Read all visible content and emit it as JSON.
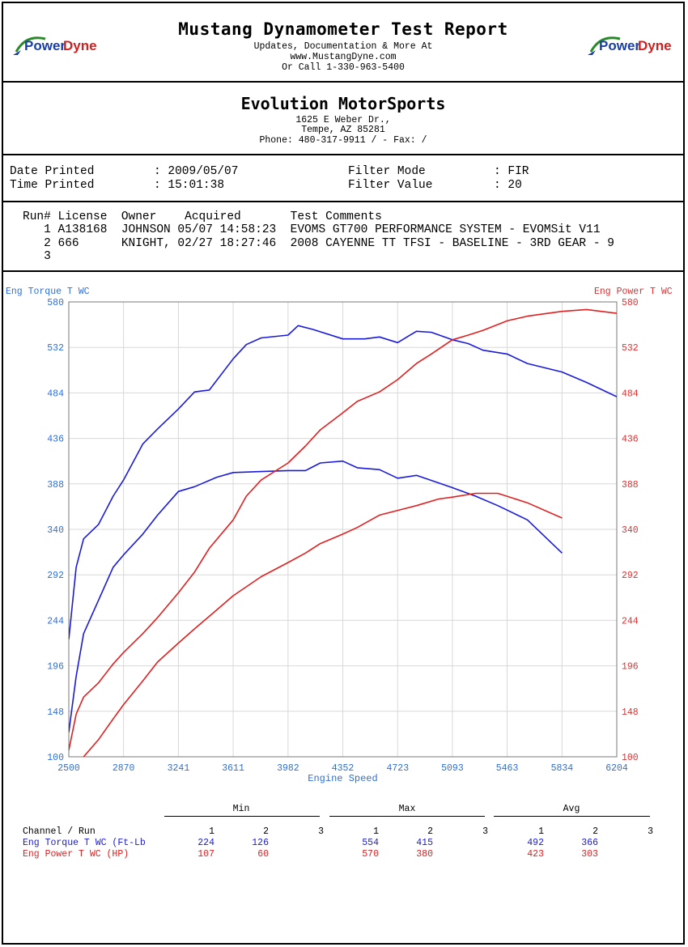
{
  "header": {
    "title": "Mustang Dynamometer Test Report",
    "line1": "Updates, Documentation & More At",
    "line2": "www.MustangDyne.com",
    "line3": "Or Call 1-330-963-5400",
    "logo_text": "PowerDyne",
    "logo_part1": "Power",
    "logo_part2": "Dyne"
  },
  "shop": {
    "name": "Evolution MotorSports",
    "address": "1625 E Weber Dr.,",
    "city": "Tempe, AZ  85281",
    "phone": "Phone: 480-317-9911 /  - Fax:  /"
  },
  "info": {
    "date_label": "Date Printed",
    "date_value": ": 2009/05/07",
    "time_label": "Time Printed",
    "time_value": ": 15:01:38",
    "filter_mode_label": "Filter Mode",
    "filter_mode_value": ": FIR",
    "filter_value_label": "Filter Value",
    "filter_value_value": ": 20"
  },
  "runs": {
    "header": "Run# License  Owner    Acquired       Test Comments",
    "rows": [
      "   1 A138168  JOHNSON 05/07 14:58:23  EVOMS GT700 PERFORMANCE SYSTEM - EVOMSit V11",
      "   2 666      KNIGHT, 02/27 18:27:46  2008 CAYENNE TT TFSI - BASELINE - 3RD GEAR - 9",
      "   3"
    ]
  },
  "chart_data": {
    "type": "line",
    "title": "",
    "xlabel": "Engine Speed",
    "ylabel_left": "Eng Torque T WC",
    "ylabel_right": "Eng Power T WC",
    "xlim": [
      2500,
      6204
    ],
    "ylim": [
      100,
      580
    ],
    "x_ticks": [
      "2500",
      "2870",
      "3241",
      "3611",
      "3982",
      "4352",
      "4723",
      "5093",
      "5463",
      "5834",
      "6204"
    ],
    "y_ticks": [
      "100",
      "148",
      "196",
      "244",
      "292",
      "340",
      "388",
      "436",
      "484",
      "532",
      "580"
    ],
    "grid": true,
    "colors": {
      "torque": "#1a1adc",
      "power": "#e02020",
      "left_axis": "#2f6fd8",
      "right_axis": "#e03030"
    },
    "series": [
      {
        "name": "Eng Torque T WC",
        "run": 1,
        "color": "#1a1adc",
        "x": [
          2500,
          2550,
          2600,
          2700,
          2800,
          2870,
          3000,
          3100,
          3241,
          3350,
          3450,
          3611,
          3700,
          3800,
          3982,
          4050,
          4150,
          4352,
          4500,
          4600,
          4723,
          4850,
          4950,
          5093,
          5200,
          5300,
          5463,
          5600,
          5834,
          6000,
          6204
        ],
        "y": [
          224,
          300,
          330,
          345,
          375,
          392,
          430,
          446,
          467,
          485,
          487,
          520,
          535,
          542,
          545,
          555,
          551,
          541,
          541,
          543,
          537,
          549,
          548,
          540,
          536,
          529,
          525,
          515,
          506,
          495,
          480
        ]
      },
      {
        "name": "Eng Torque T WC",
        "run": 2,
        "color": "#1a1adc",
        "x": [
          2500,
          2550,
          2600,
          2700,
          2800,
          2870,
          3000,
          3100,
          3241,
          3350,
          3500,
          3611,
          3800,
          3982,
          4100,
          4200,
          4352,
          4450,
          4600,
          4723,
          4850,
          5000,
          5093,
          5250,
          5400,
          5600,
          5834
        ],
        "y": [
          126,
          185,
          230,
          265,
          300,
          313,
          335,
          355,
          380,
          385,
          395,
          400,
          401,
          402,
          402,
          410,
          412,
          405,
          403,
          394,
          397,
          389,
          384,
          375,
          365,
          350,
          315
        ]
      },
      {
        "name": "Eng Power T WC",
        "run": 1,
        "color": "#e02020",
        "x": [
          2500,
          2550,
          2600,
          2700,
          2800,
          2870,
          3000,
          3100,
          3241,
          3350,
          3450,
          3611,
          3700,
          3800,
          3982,
          4100,
          4200,
          4352,
          4450,
          4600,
          4723,
          4850,
          4950,
          5093,
          5200,
          5300,
          5463,
          5600,
          5834,
          6000,
          6204
        ],
        "y": [
          107,
          145,
          163,
          178,
          198,
          210,
          230,
          247,
          273,
          295,
          320,
          350,
          375,
          392,
          410,
          428,
          445,
          463,
          475,
          485,
          498,
          515,
          525,
          540,
          545,
          550,
          560,
          565,
          570,
          572,
          568
        ]
      },
      {
        "name": "Eng Power T WC",
        "run": 2,
        "color": "#e02020",
        "x": [
          2500,
          2550,
          2600,
          2700,
          2800,
          2870,
          3000,
          3100,
          3241,
          3350,
          3500,
          3611,
          3800,
          3982,
          4100,
          4200,
          4352,
          4450,
          4600,
          4723,
          4850,
          5000,
          5093,
          5250,
          5400,
          5600,
          5834
        ],
        "y": [
          60,
          80,
          100,
          118,
          140,
          155,
          180,
          200,
          220,
          235,
          255,
          270,
          290,
          305,
          315,
          325,
          335,
          342,
          355,
          360,
          365,
          372,
          374,
          378,
          378,
          368,
          352
        ]
      }
    ]
  },
  "stats": {
    "groups": [
      "Min",
      "Max",
      "Avg"
    ],
    "channel_label": "Channel / Run",
    "run_numbers": [
      "1",
      "2",
      "3"
    ],
    "rows": [
      {
        "label": "Eng Torque T WC (Ft-Lb",
        "color": "#1a1adc",
        "min": [
          "224",
          "126",
          ""
        ],
        "max": [
          "554",
          "415",
          ""
        ],
        "avg": [
          "492",
          "366",
          ""
        ]
      },
      {
        "label": "Eng Power T WC (HP)",
        "color": "#e02020",
        "min": [
          "107",
          "60",
          ""
        ],
        "max": [
          "570",
          "380",
          ""
        ],
        "avg": [
          "423",
          "303",
          ""
        ]
      }
    ]
  }
}
